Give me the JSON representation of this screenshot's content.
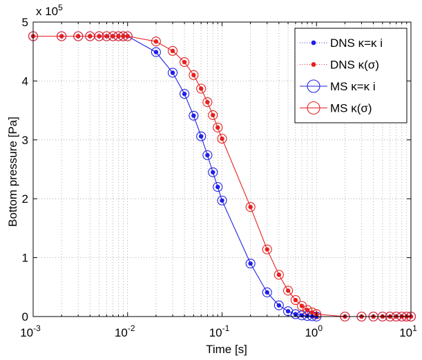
{
  "chart_data": {
    "type": "line",
    "title": "",
    "xlabel": "Time [s]",
    "ylabel": "Bottom pressure [Pa]",
    "x_scale": "log",
    "xlim": [
      0.001,
      10
    ],
    "ylim": [
      0,
      500000
    ],
    "grid": true,
    "legend_position": "top-right",
    "y_multiplier_label": {
      "base": "x 10",
      "exponent": "5"
    },
    "x_ticks": [
      {
        "value": 0.001,
        "base": "10",
        "exp": "-3"
      },
      {
        "value": 0.01,
        "base": "10",
        "exp": "-2"
      },
      {
        "value": 0.1,
        "base": "10",
        "exp": "-1"
      },
      {
        "value": 1,
        "base": "10",
        "exp": "0"
      },
      {
        "value": 10,
        "base": "10",
        "exp": "1"
      }
    ],
    "y_ticks": [
      {
        "value": 0,
        "label": "0"
      },
      {
        "value": 100000,
        "label": "1"
      },
      {
        "value": 200000,
        "label": "2"
      },
      {
        "value": 300000,
        "label": "3"
      },
      {
        "value": 400000,
        "label": "4"
      },
      {
        "value": 500000,
        "label": "5"
      }
    ],
    "x_ms": [
      0.001,
      0.002,
      0.003,
      0.004,
      0.005,
      0.006,
      0.007,
      0.008,
      0.009,
      0.01,
      0.02,
      0.03,
      0.04,
      0.05,
      0.06,
      0.07,
      0.08,
      0.09,
      0.1,
      0.2,
      0.3,
      0.4,
      0.5,
      0.6,
      0.7,
      0.8,
      0.9,
      1,
      2,
      3,
      4,
      5,
      6,
      7,
      8,
      9,
      10
    ],
    "series": [
      {
        "name": "DNS κ=κ i",
        "style": "markers",
        "color": "#1f1fe6",
        "x": [
          0.001,
          0.002,
          0.003,
          0.004,
          0.005,
          0.006,
          0.007,
          0.008,
          0.009,
          0.01,
          0.02,
          0.03,
          0.04,
          0.05,
          0.06,
          0.07,
          0.08,
          0.09,
          0.1,
          0.2,
          0.3,
          0.4,
          0.5,
          0.6,
          0.7,
          0.8,
          0.9,
          1,
          2,
          3,
          4,
          5,
          6,
          7,
          8,
          9,
          10
        ],
        "values": [
          476000,
          476000,
          476000,
          476000,
          476000,
          476000,
          476000,
          476000,
          476000,
          476000,
          449000,
          414000,
          378000,
          341000,
          306000,
          274000,
          245000,
          220000,
          197000,
          90000,
          41000,
          19000,
          9000,
          4000,
          2000,
          1000,
          500,
          0,
          0,
          0,
          0,
          0,
          0,
          0,
          0,
          0,
          0
        ]
      },
      {
        "name": "DNS κ(σ)",
        "style": "markers",
        "color": "#e61f1f",
        "x": [
          0.001,
          0.002,
          0.003,
          0.004,
          0.005,
          0.006,
          0.007,
          0.008,
          0.009,
          0.01,
          0.02,
          0.03,
          0.04,
          0.05,
          0.06,
          0.07,
          0.08,
          0.09,
          0.1,
          0.2,
          0.3,
          0.4,
          0.5,
          0.6,
          0.7,
          0.8,
          0.9,
          1,
          2,
          3,
          4,
          5,
          6,
          7,
          8,
          9,
          10
        ],
        "values": [
          476000,
          476000,
          476000,
          476000,
          476000,
          476000,
          476000,
          476000,
          476000,
          476000,
          467000,
          451000,
          432000,
          410000,
          387000,
          364000,
          342000,
          321000,
          302000,
          186000,
          114000,
          71000,
          44000,
          28000,
          18000,
          11000,
          7000,
          4000,
          0,
          0,
          0,
          0,
          0,
          0,
          0,
          0,
          0
        ]
      },
      {
        "name": "MS κ=κ i",
        "style": "line+open-circles",
        "color": "#1f1fe6",
        "x": [
          0.001,
          0.002,
          0.003,
          0.004,
          0.005,
          0.006,
          0.007,
          0.008,
          0.009,
          0.01,
          0.02,
          0.03,
          0.04,
          0.05,
          0.06,
          0.07,
          0.08,
          0.09,
          0.1,
          0.2,
          0.3,
          0.4,
          0.5,
          0.6,
          0.7,
          0.8,
          0.9,
          1,
          2,
          3,
          4,
          5,
          6,
          7,
          8,
          9,
          10
        ],
        "values": [
          476000,
          476000,
          476000,
          476000,
          476000,
          476000,
          476000,
          476000,
          476000,
          476000,
          449000,
          414000,
          378000,
          341000,
          306000,
          274000,
          245000,
          220000,
          197000,
          90000,
          41000,
          19000,
          9000,
          4000,
          2000,
          1000,
          500,
          0,
          0,
          0,
          0,
          0,
          0,
          0,
          0,
          0,
          0
        ]
      },
      {
        "name": "MS κ(σ)",
        "style": "line+open-circles",
        "color": "#e61f1f",
        "x": [
          0.001,
          0.002,
          0.003,
          0.004,
          0.005,
          0.006,
          0.007,
          0.008,
          0.009,
          0.01,
          0.02,
          0.03,
          0.04,
          0.05,
          0.06,
          0.07,
          0.08,
          0.09,
          0.1,
          0.2,
          0.3,
          0.4,
          0.5,
          0.6,
          0.7,
          0.8,
          0.9,
          1,
          2,
          3,
          4,
          5,
          6,
          7,
          8,
          9,
          10
        ],
        "values": [
          476000,
          476000,
          476000,
          476000,
          476000,
          476000,
          476000,
          476000,
          476000,
          476000,
          467000,
          451000,
          432000,
          410000,
          387000,
          364000,
          342000,
          321000,
          302000,
          186000,
          114000,
          71000,
          44000,
          28000,
          18000,
          11000,
          7000,
          4000,
          0,
          0,
          0,
          0,
          0,
          0,
          0,
          0,
          0
        ]
      }
    ]
  }
}
